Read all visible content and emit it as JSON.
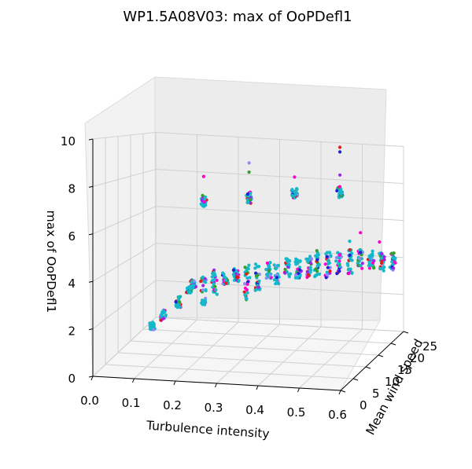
{
  "chart_data": {
    "type": "scatter",
    "projection": "3d",
    "title": "WP1.5A08V03: max of OoPDefl1",
    "xlabel": "Turbulence intensity",
    "ylabel": "Mean wind speed",
    "zlabel": "max of OoPDefl1",
    "xticks": [
      "0.0",
      "0.1",
      "0.2",
      "0.3",
      "0.4",
      "0.5",
      "0.6"
    ],
    "yticks": [
      "0",
      "5",
      "10",
      "15",
      "20",
      "25"
    ],
    "zticks": [
      "0",
      "2",
      "4",
      "6",
      "8",
      "10"
    ],
    "xlim": [
      0,
      0.6
    ],
    "ylim": [
      0,
      25
    ],
    "zlim": [
      0,
      10
    ],
    "grid": true,
    "colors": [
      "#e41a1c",
      "#33a02c",
      "#1f1fd6",
      "#a020f0",
      "#00bcd4",
      "#8c8cff",
      "#ff00cc"
    ],
    "clusters": [
      {
        "x": 0.12,
        "y": 4,
        "z_range": [
          1.75,
          2.05
        ]
      },
      {
        "x": 0.14,
        "y": 5,
        "z_range": [
          2.05,
          2.55
        ]
      },
      {
        "x": 0.17,
        "y": 6,
        "z_range": [
          2.6,
          3.1
        ]
      },
      {
        "x": 0.19,
        "y": 7,
        "z_range": [
          3.2,
          3.5
        ]
      },
      {
        "x": 0.2,
        "y": 7,
        "z_range": [
          3.45,
          3.8
        ]
      },
      {
        "x": 0.22,
        "y": 8,
        "z_range": [
          2.6,
          3.9
        ]
      },
      {
        "x": 0.24,
        "y": 9,
        "z_range": [
          3.0,
          4.2
        ]
      },
      {
        "x": 0.26,
        "y": 10,
        "z_range": [
          3.4,
          4.0
        ]
      },
      {
        "x": 0.28,
        "y": 11,
        "z_range": [
          3.5,
          4.1
        ]
      },
      {
        "x": 0.3,
        "y": 12,
        "z_range": [
          2.6,
          4.3
        ]
      },
      {
        "x": 0.32,
        "y": 13,
        "z_range": [
          3.0,
          4.3
        ]
      },
      {
        "x": 0.34,
        "y": 14,
        "z_range": [
          3.5,
          4.3
        ]
      },
      {
        "x": 0.36,
        "y": 14,
        "z_range": [
          3.2,
          4.2
        ]
      },
      {
        "x": 0.38,
        "y": 15,
        "z_range": [
          3.5,
          4.5
        ]
      },
      {
        "x": 0.4,
        "y": 16,
        "z_range": [
          3.4,
          4.4
        ]
      },
      {
        "x": 0.42,
        "y": 17,
        "z_range": [
          3.3,
          4.5
        ]
      },
      {
        "x": 0.44,
        "y": 17,
        "z_range": [
          3.4,
          4.8
        ]
      },
      {
        "x": 0.46,
        "y": 18,
        "z_range": [
          3.3,
          4.7
        ]
      },
      {
        "x": 0.48,
        "y": 19,
        "z_range": [
          3.5,
          4.6
        ]
      },
      {
        "x": 0.5,
        "y": 20,
        "z_range": [
          3.4,
          4.7
        ]
      },
      {
        "x": 0.52,
        "y": 21,
        "z_range": [
          3.6,
          4.6
        ]
      },
      {
        "x": 0.54,
        "y": 22,
        "z_range": [
          3.6,
          4.5
        ]
      },
      {
        "x": 0.56,
        "y": 23,
        "z_range": [
          3.4,
          4.4
        ]
      },
      {
        "x": 0.58,
        "y": 24,
        "z_range": [
          3.4,
          4.3
        ]
      },
      {
        "x": 0.25,
        "y": 3,
        "z_range": [
          7.3,
          7.8
        ]
      },
      {
        "x": 0.36,
        "y": 3,
        "z_range": [
          7.5,
          8.1
        ]
      },
      {
        "x": 0.47,
        "y": 3,
        "z_range": [
          7.9,
          8.3
        ]
      },
      {
        "x": 0.58,
        "y": 3,
        "z_range": [
          8.0,
          8.5
        ]
      }
    ],
    "outliers": [
      {
        "x": 0.25,
        "y": 3,
        "z": 8.6
      },
      {
        "x": 0.36,
        "y": 3,
        "z": 9.3
      },
      {
        "x": 0.36,
        "y": 3,
        "z": 8.9
      },
      {
        "x": 0.47,
        "y": 3,
        "z": 8.8
      },
      {
        "x": 0.58,
        "y": 3,
        "z": 9.0
      },
      {
        "x": 0.58,
        "y": 3,
        "z": 10.2
      },
      {
        "x": 0.58,
        "y": 3,
        "z": 10.0
      },
      {
        "x": 0.52,
        "y": 21,
        "z": 5.5
      },
      {
        "x": 0.5,
        "y": 20,
        "z": 5.1
      },
      {
        "x": 0.56,
        "y": 22,
        "z": 5.0
      }
    ]
  }
}
